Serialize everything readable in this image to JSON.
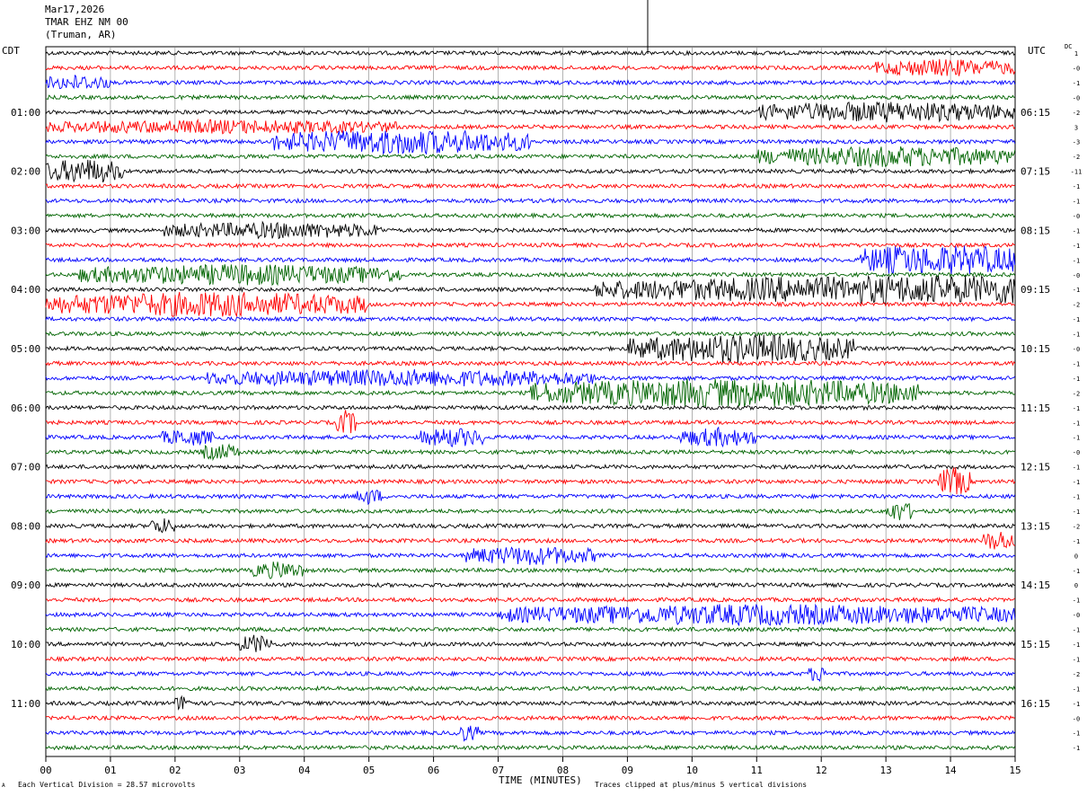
{
  "header": {
    "date": "Mar17,2026",
    "station": "TMAR EHZ NM 00",
    "location": "(Truman, AR)"
  },
  "left_timezone": "CDT",
  "right_timezone": "UTC",
  "dc_header": "DC",
  "footer": {
    "scale_note": "Each Vertical Division =   28.57 microvolts",
    "clip_note": "Traces clipped at plus/minus 5 vertical divisions",
    "corner_mark": "A"
  },
  "colors": {
    "cycle": [
      "#000000",
      "#ff0000",
      "#0000ff",
      "#006400"
    ],
    "grid": "#808080"
  },
  "chart_data": {
    "type": "helicorder",
    "xlabel": "TIME (MINUTES)",
    "xlim": [
      0,
      15
    ],
    "x_ticks": [
      "00",
      "01",
      "02",
      "03",
      "04",
      "05",
      "06",
      "07",
      "08",
      "09",
      "10",
      "11",
      "12",
      "13",
      "14",
      "15"
    ],
    "rows_per_hour": 4,
    "minutes_per_row": 15,
    "row_count": 48,
    "left_hour_labels": [
      "01:00",
      "02:00",
      "03:00",
      "04:00",
      "05:00",
      "06:00",
      "07:00",
      "08:00",
      "09:00",
      "10:00",
      "11:00"
    ],
    "right_hour_labels": [
      "06:15",
      "07:15",
      "08:15",
      "09:15",
      "10:15",
      "11:15",
      "12:15",
      "13:15",
      "14:15",
      "15:15",
      "16:15"
    ],
    "dc_offsets": [
      "1",
      "-0",
      "-1",
      "-0",
      "-2",
      "3",
      "-3",
      "-2",
      "-11",
      "-1",
      "-1",
      "-0",
      "-1",
      "-1",
      "-1",
      "-0",
      "-1",
      "-2",
      "-1",
      "-1",
      "-0",
      "-1",
      "-1",
      "-2",
      "-1",
      "-1",
      "-1",
      "-0",
      "-1",
      "-1",
      "-1",
      "-1",
      "-2",
      "-1",
      "0",
      "-1",
      "0",
      "-1",
      "-0",
      "-1",
      "-1",
      "-1",
      "-2",
      "-1",
      "-1",
      "-0",
      "-1",
      "-1"
    ],
    "events": [
      {
        "row": 1,
        "start": 12.8,
        "end": 15.0,
        "amp": 1.6
      },
      {
        "row": 2,
        "start": 0.0,
        "end": 1.0,
        "amp": 1.4
      },
      {
        "row": 4,
        "start": 11.0,
        "end": 15.0,
        "amp": 2.0
      },
      {
        "row": 5,
        "start": 0.0,
        "end": 5.5,
        "amp": 1.2
      },
      {
        "row": 6,
        "start": 3.5,
        "end": 7.5,
        "amp": 2.5
      },
      {
        "row": 7,
        "start": 11.0,
        "end": 15.0,
        "amp": 2.0
      },
      {
        "row": 8,
        "start": 0.0,
        "end": 1.2,
        "amp": 2.5
      },
      {
        "row": 12,
        "start": 1.8,
        "end": 5.2,
        "amp": 1.5
      },
      {
        "row": 14,
        "start": 12.6,
        "end": 15.0,
        "amp": 3.5
      },
      {
        "row": 15,
        "start": 0.5,
        "end": 5.5,
        "amp": 2.0
      },
      {
        "row": 16,
        "start": 8.5,
        "end": 15.0,
        "amp": 2.5
      },
      {
        "row": 16,
        "start": 12.5,
        "end": 15.0,
        "amp": 5.0
      },
      {
        "row": 17,
        "start": 0.0,
        "end": 5.0,
        "amp": 2.5
      },
      {
        "row": 20,
        "start": 9.0,
        "end": 12.5,
        "amp": 3.0
      },
      {
        "row": 22,
        "start": 2.5,
        "end": 8.5,
        "amp": 1.6
      },
      {
        "row": 23,
        "start": 7.5,
        "end": 13.5,
        "amp": 3.0
      },
      {
        "row": 25,
        "start": 4.5,
        "end": 4.8,
        "amp": 2.5
      },
      {
        "row": 26,
        "start": 1.8,
        "end": 2.6,
        "amp": 1.5
      },
      {
        "row": 26,
        "start": 5.8,
        "end": 6.8,
        "amp": 1.8
      },
      {
        "row": 26,
        "start": 9.8,
        "end": 11.0,
        "amp": 1.8
      },
      {
        "row": 27,
        "start": 2.4,
        "end": 3.0,
        "amp": 1.5
      },
      {
        "row": 29,
        "start": 13.8,
        "end": 14.3,
        "amp": 3.0
      },
      {
        "row": 30,
        "start": 4.8,
        "end": 5.2,
        "amp": 1.5
      },
      {
        "row": 31,
        "start": 13.0,
        "end": 13.4,
        "amp": 2.0
      },
      {
        "row": 32,
        "start": 1.6,
        "end": 2.0,
        "amp": 1.5
      },
      {
        "row": 33,
        "start": 14.5,
        "end": 15.0,
        "amp": 2.0
      },
      {
        "row": 34,
        "start": 6.5,
        "end": 8.5,
        "amp": 1.8
      },
      {
        "row": 35,
        "start": 3.2,
        "end": 4.0,
        "amp": 1.6
      },
      {
        "row": 38,
        "start": 7.0,
        "end": 15.0,
        "amp": 2.0
      },
      {
        "row": 40,
        "start": 3.0,
        "end": 3.5,
        "amp": 1.8
      },
      {
        "row": 42,
        "start": 11.8,
        "end": 12.1,
        "amp": 1.5
      },
      {
        "row": 44,
        "start": 2.0,
        "end": 2.3,
        "amp": 1.5
      },
      {
        "row": 46,
        "start": 6.3,
        "end": 6.7,
        "amp": 1.5
      }
    ]
  }
}
